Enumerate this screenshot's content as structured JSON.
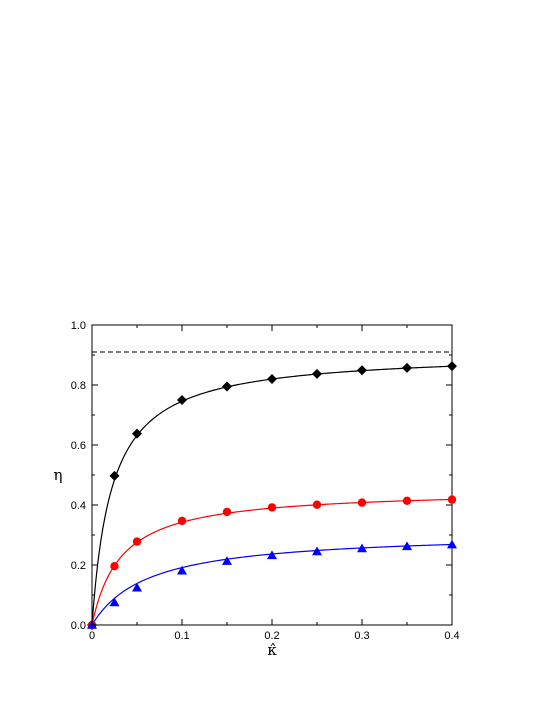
{
  "chart_data": {
    "type": "line",
    "xlabel": "κ̂",
    "ylabel": "η",
    "xlim": [
      0,
      0.4
    ],
    "ylim": [
      0,
      1.0
    ],
    "x_ticks": [
      "0",
      "0.1",
      "0.2",
      "0.3",
      "0.4"
    ],
    "y_ticks": [
      "0.0",
      "0.2",
      "0.4",
      "0.6",
      "0.8",
      "1.0"
    ],
    "grid": false,
    "reference_line": {
      "y": 0.91,
      "style": "dashed",
      "color": "#000000"
    },
    "series": [
      {
        "color": "#000000",
        "marker": "diamond",
        "x": [
          0,
          0.025,
          0.05,
          0.1,
          0.15,
          0.2,
          0.25,
          0.3,
          0.35,
          0.4
        ],
        "y": [
          0.0,
          0.497,
          0.638,
          0.75,
          0.795,
          0.82,
          0.837,
          0.849,
          0.857,
          0.863
        ],
        "curve_sat": 0.91,
        "curve_k": 0.022
      },
      {
        "color": "#ff0000",
        "marker": "circle",
        "x": [
          0,
          0.025,
          0.05,
          0.1,
          0.15,
          0.2,
          0.25,
          0.3,
          0.35,
          0.4
        ],
        "y": [
          0.0,
          0.196,
          0.278,
          0.347,
          0.377,
          0.392,
          0.401,
          0.408,
          0.414,
          0.418
        ],
        "curve_sat": 0.452,
        "curve_k": 0.032
      },
      {
        "color": "#0000ff",
        "marker": "triangle",
        "x": [
          0,
          0.025,
          0.05,
          0.1,
          0.15,
          0.2,
          0.25,
          0.3,
          0.35,
          0.4
        ],
        "y": [
          0.0,
          0.075,
          0.124,
          0.181,
          0.213,
          0.232,
          0.245,
          0.255,
          0.262,
          0.268
        ],
        "curve_sat": 0.31,
        "curve_k": 0.062
      }
    ]
  }
}
